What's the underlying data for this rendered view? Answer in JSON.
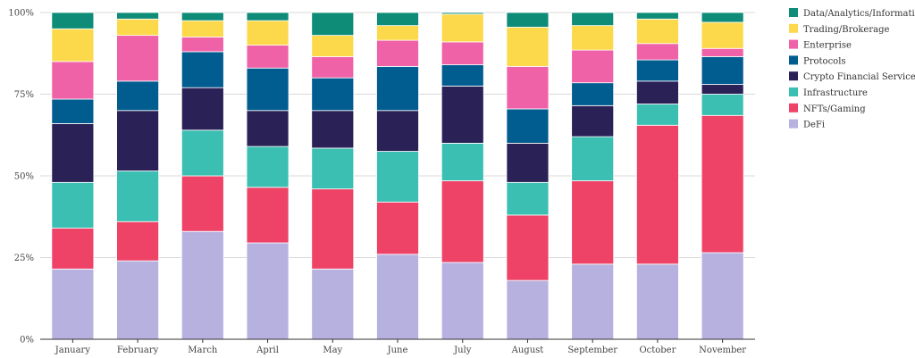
{
  "chart_data": {
    "type": "bar",
    "stacked": true,
    "normalized_percent": true,
    "title": "",
    "xlabel": "",
    "ylabel": "",
    "ylim": [
      0,
      100
    ],
    "y_ticks": [
      "0%",
      "25%",
      "50%",
      "75%",
      "100%"
    ],
    "y_tick_values": [
      0,
      25,
      50,
      75,
      100
    ],
    "grid": true,
    "legend_position": "right",
    "categories": [
      "January",
      "February",
      "March",
      "April",
      "May",
      "June",
      "July",
      "August",
      "September",
      "October",
      "November"
    ],
    "series": [
      {
        "name": "DeFi",
        "color": "#b7b1e0",
        "values": [
          21.5,
          24,
          33,
          29.5,
          21.5,
          26,
          23.5,
          18,
          23,
          23,
          26.5
        ]
      },
      {
        "name": "NFTs/Gaming",
        "color": "#ee4266",
        "values": [
          12.5,
          12,
          17,
          17,
          24.5,
          16,
          25,
          20,
          25.5,
          42.5,
          42
        ]
      },
      {
        "name": "Infrastructure",
        "color": "#3bbfb2",
        "values": [
          14,
          15.5,
          14,
          12.5,
          12.5,
          15.5,
          11.5,
          10,
          13.5,
          6.5,
          6.5
        ]
      },
      {
        "name": "Crypto Financial Services",
        "color": "#2a2157",
        "values": [
          18,
          18.5,
          13,
          11,
          11.5,
          12.5,
          17.5,
          12,
          9.5,
          7,
          3
        ]
      },
      {
        "name": "Protocols",
        "color": "#015c8f",
        "values": [
          7.5,
          9,
          11,
          13,
          10,
          13.5,
          6.5,
          10.5,
          7,
          6.5,
          8.5
        ]
      },
      {
        "name": "Enterprise",
        "color": "#f062a8",
        "values": [
          11.5,
          14,
          4.5,
          7,
          6.5,
          8,
          7,
          13,
          10,
          5,
          2.5
        ]
      },
      {
        "name": "Trading/Brokerage",
        "color": "#fcd94a",
        "values": [
          10,
          5,
          5,
          7.5,
          6.5,
          4.5,
          8.5,
          12,
          7.5,
          7.5,
          8
        ]
      },
      {
        "name": "Data/Analytics/Information",
        "color": "#0f8c78",
        "values": [
          5,
          2,
          2.5,
          2.5,
          7,
          4,
          0.5,
          4.5,
          4,
          2,
          3
        ]
      }
    ],
    "legend_order": [
      "Data/Analytics/Information",
      "Trading/Brokerage",
      "Enterprise",
      "Protocols",
      "Crypto Financial Services",
      "Infrastructure",
      "NFTs/Gaming",
      "DeFi"
    ]
  }
}
